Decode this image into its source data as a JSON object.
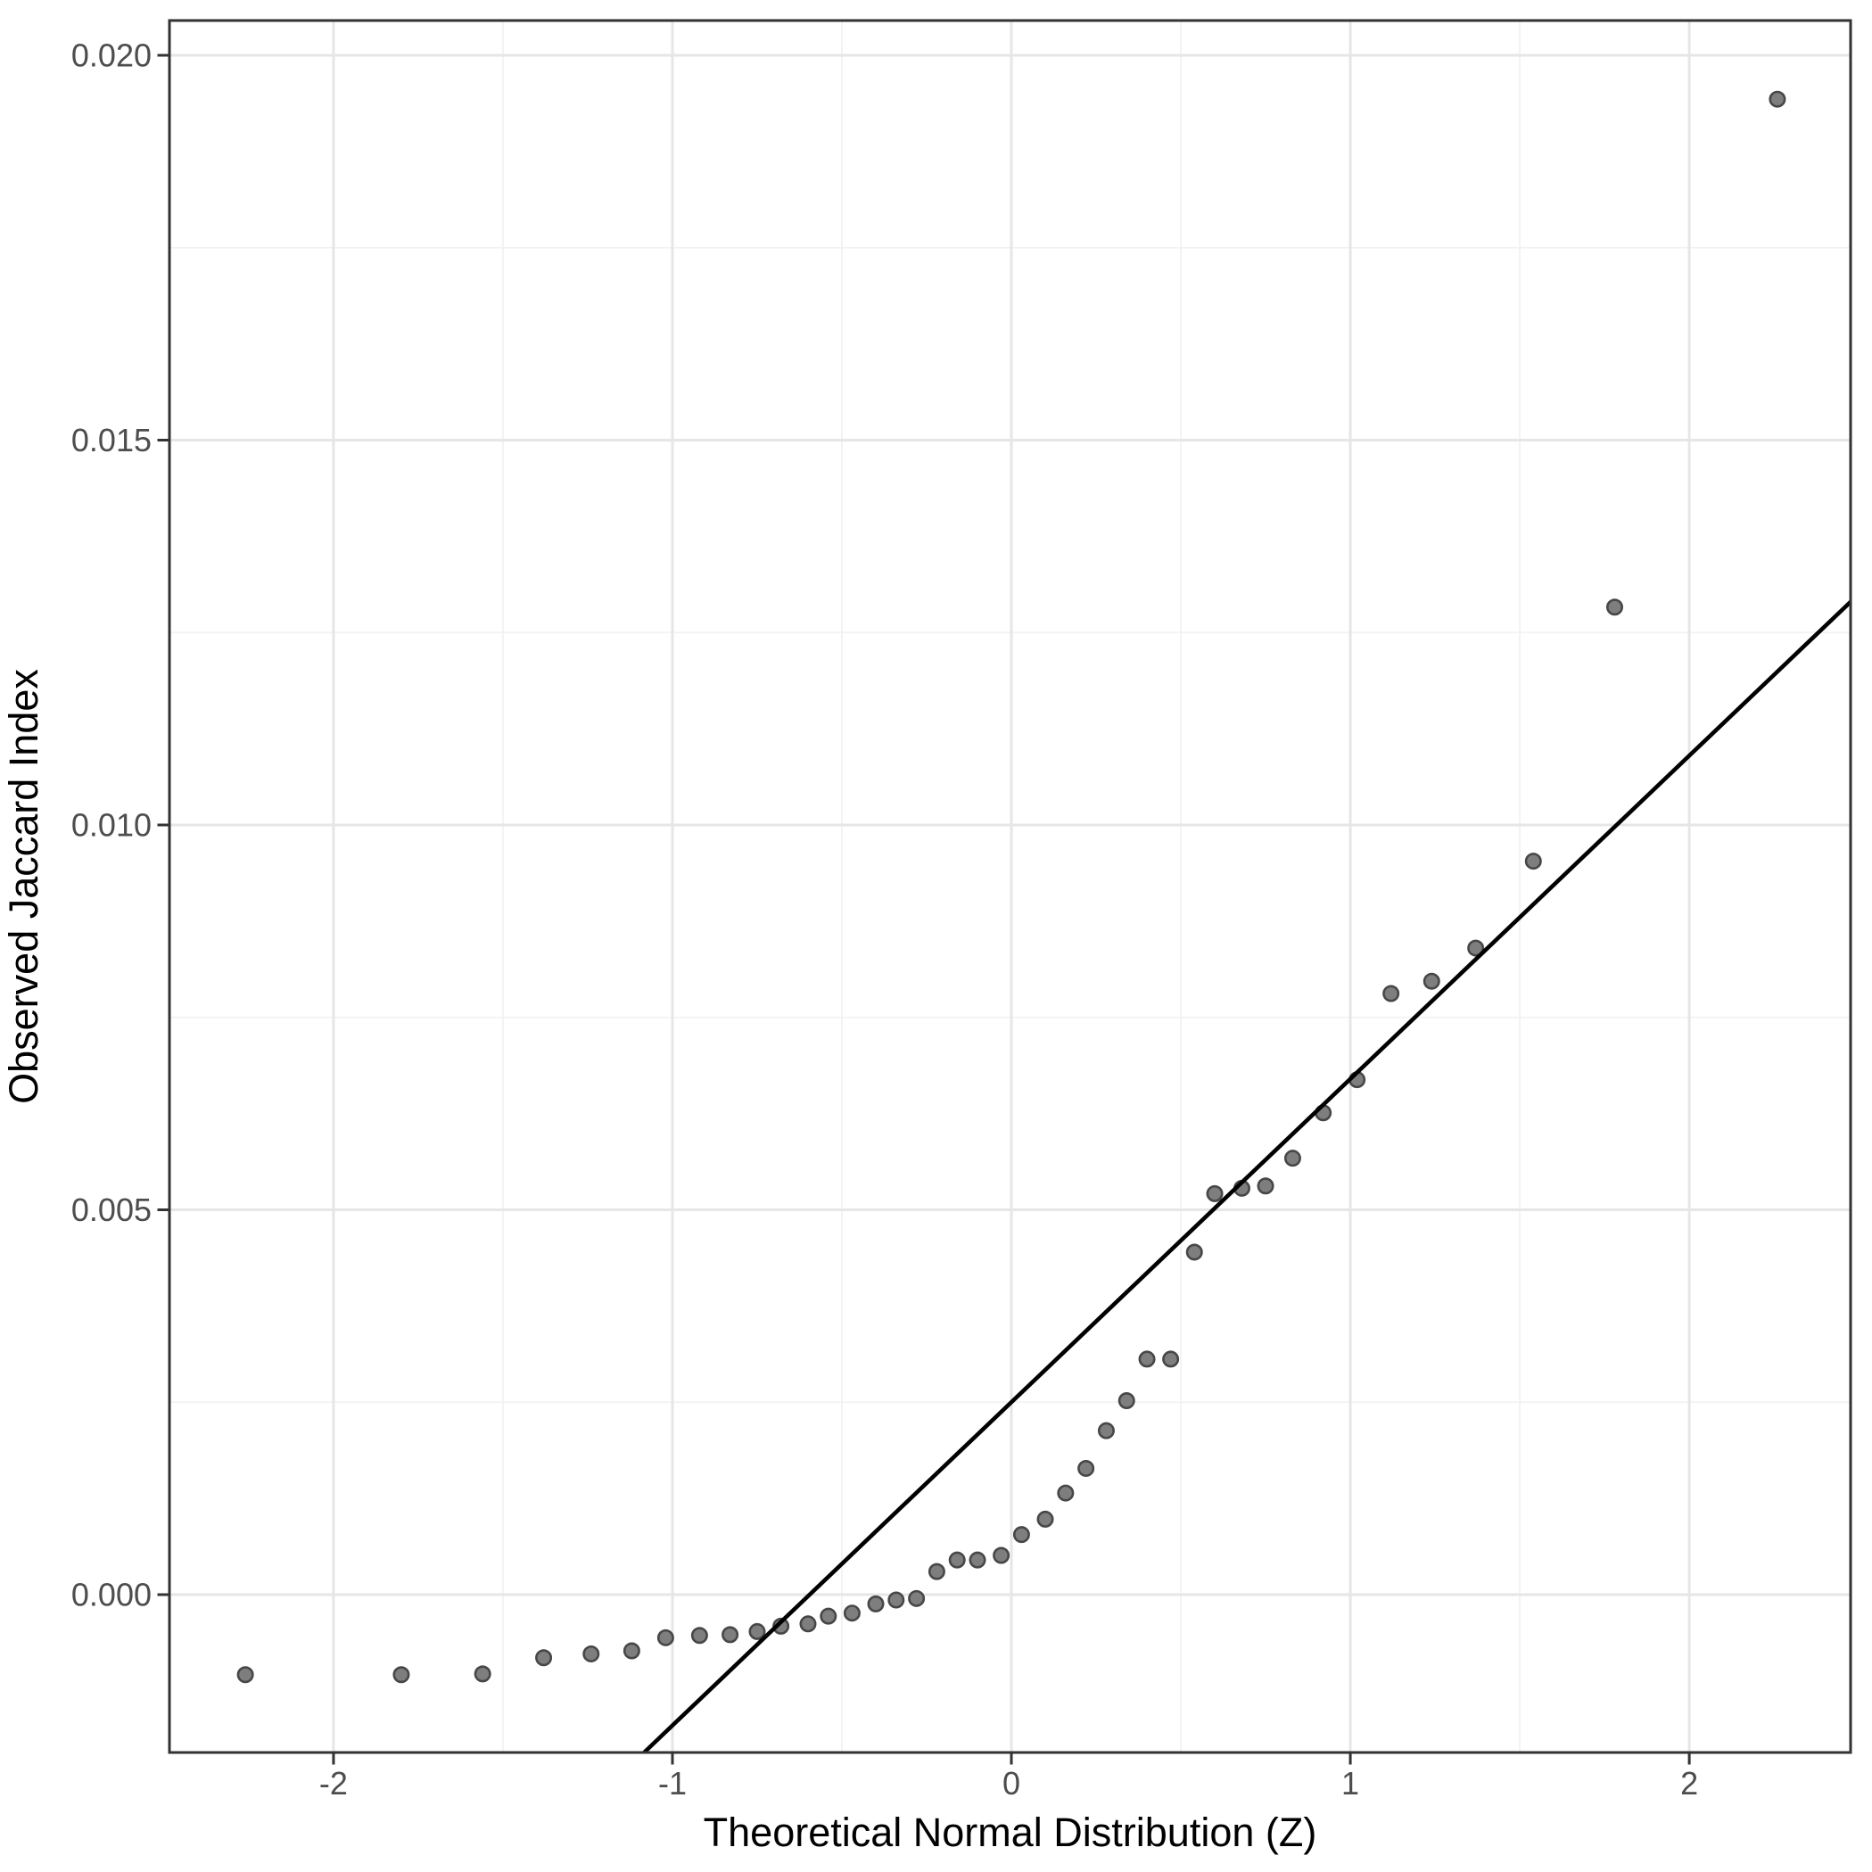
{
  "chart_data": {
    "type": "scatter",
    "title": "",
    "xlabel": "Theoretical Normal Distribution (Z)",
    "ylabel": "Observed Jaccard Index",
    "xlim": [
      -2.484,
      2.476
    ],
    "ylim": [
      -0.002051,
      0.020452
    ],
    "x_ticks": [
      {
        "value": -2,
        "label": "-2"
      },
      {
        "value": -1,
        "label": "-1"
      },
      {
        "value": 0,
        "label": "0"
      },
      {
        "value": 1,
        "label": "1"
      },
      {
        "value": 2,
        "label": "2"
      }
    ],
    "y_ticks": [
      {
        "value": 0.0,
        "label": "0.000"
      },
      {
        "value": 0.005,
        "label": "0.005"
      },
      {
        "value": 0.01,
        "label": "0.010"
      },
      {
        "value": 0.015,
        "label": "0.015"
      },
      {
        "value": 0.02,
        "label": "0.020"
      }
    ],
    "grid": {
      "major": true,
      "minor": true
    },
    "legend_position": "none",
    "points": [
      [
        -2.26,
        -0.00104
      ],
      [
        -1.8,
        -0.00104
      ],
      [
        -1.56,
        -0.00103
      ],
      [
        -1.38,
        -0.00082
      ],
      [
        -1.24,
        -0.00077
      ],
      [
        -1.12,
        -0.00073
      ],
      [
        -1.02,
        -0.00056
      ],
      [
        -0.92,
        -0.00053
      ],
      [
        -0.83,
        -0.00052
      ],
      [
        -0.75,
        -0.00048
      ],
      [
        -0.68,
        -0.00041
      ],
      [
        -0.6,
        -0.00038
      ],
      [
        -0.54,
        -0.00028
      ],
      [
        -0.47,
        -0.00024
      ],
      [
        -0.4,
        -0.00012
      ],
      [
        -0.34,
        -7e-05
      ],
      [
        -0.28,
        -5e-05
      ],
      [
        -0.22,
        0.0003
      ],
      [
        -0.16,
        0.00045
      ],
      [
        -0.1,
        0.00045
      ],
      [
        -0.03,
        0.00051
      ],
      [
        0.03,
        0.00078
      ],
      [
        0.1,
        0.00098
      ],
      [
        0.16,
        0.00132
      ],
      [
        0.22,
        0.00164
      ],
      [
        0.28,
        0.00213
      ],
      [
        0.34,
        0.00252
      ],
      [
        0.4,
        0.00306
      ],
      [
        0.47,
        0.00306
      ],
      [
        0.54,
        0.00445
      ],
      [
        0.6,
        0.00521
      ],
      [
        0.68,
        0.00528
      ],
      [
        0.75,
        0.00531
      ],
      [
        0.83,
        0.00567
      ],
      [
        0.92,
        0.00626
      ],
      [
        1.02,
        0.00669
      ],
      [
        1.12,
        0.00781
      ],
      [
        1.24,
        0.00797
      ],
      [
        1.37,
        0.0084
      ],
      [
        1.54,
        0.00953
      ],
      [
        1.78,
        0.01283
      ],
      [
        2.26,
        0.01943
      ]
    ],
    "ref_line": {
      "slope": 0.0042,
      "intercept": 0.0025
    },
    "style": {
      "point_fill": "#7E7E7E",
      "point_stroke": "#474747",
      "ref_line_color": "#000000",
      "grid_major_color": "#E6E6E6",
      "grid_minor_color": "#F2F2F2",
      "panel_border_color": "#333333",
      "tick_color": "#333333",
      "tick_label_color": "#4D4D4D",
      "axis_title_color": "#000000",
      "background": "#FFFFFF"
    }
  }
}
